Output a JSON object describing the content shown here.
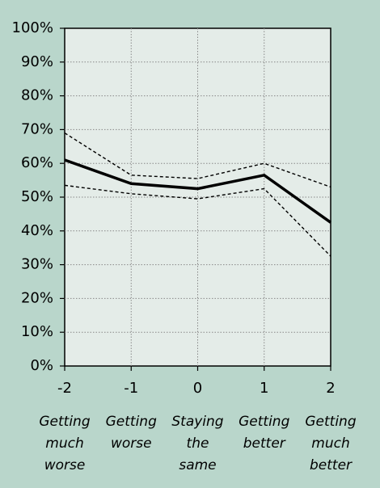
{
  "chart_data": {
    "type": "line",
    "x": [
      -2,
      -1,
      0,
      1,
      2
    ],
    "xlim": [
      -2,
      2
    ],
    "xticks": [
      -2,
      -1,
      0,
      1,
      2
    ],
    "x_descriptions": [
      [
        "Getting",
        "much",
        "worse"
      ],
      [
        "Getting",
        "worse"
      ],
      [
        "Staying",
        "the",
        "same"
      ],
      [
        "Getting",
        "better"
      ],
      [
        "Getting",
        "much",
        "better"
      ]
    ],
    "ylim": [
      0,
      100
    ],
    "yticks": [
      {
        "value": 0,
        "label": "0%"
      },
      {
        "value": 10,
        "label": "10%"
      },
      {
        "value": 20,
        "label": "20%"
      },
      {
        "value": 30,
        "label": "30%"
      },
      {
        "value": 40,
        "label": "40%"
      },
      {
        "value": 50,
        "label": "50%"
      },
      {
        "value": 60,
        "label": "60%"
      },
      {
        "value": 70,
        "label": "70%"
      },
      {
        "value": 80,
        "label": "80%"
      },
      {
        "value": 90,
        "label": "90%"
      },
      {
        "value": 100,
        "label": "100%"
      }
    ],
    "grid": true,
    "series": [
      {
        "color": "#000000",
        "style": "solid",
        "values": [
          61,
          54,
          52.5,
          56.5,
          42.5
        ]
      },
      {
        "color": "#000000",
        "style": "dashed",
        "values": [
          69,
          56.5,
          55.5,
          60,
          53
        ]
      },
      {
        "color": "#000000",
        "style": "dashed",
        "values": [
          53.5,
          51,
          49.5,
          52.5,
          32.5
        ]
      }
    ]
  }
}
